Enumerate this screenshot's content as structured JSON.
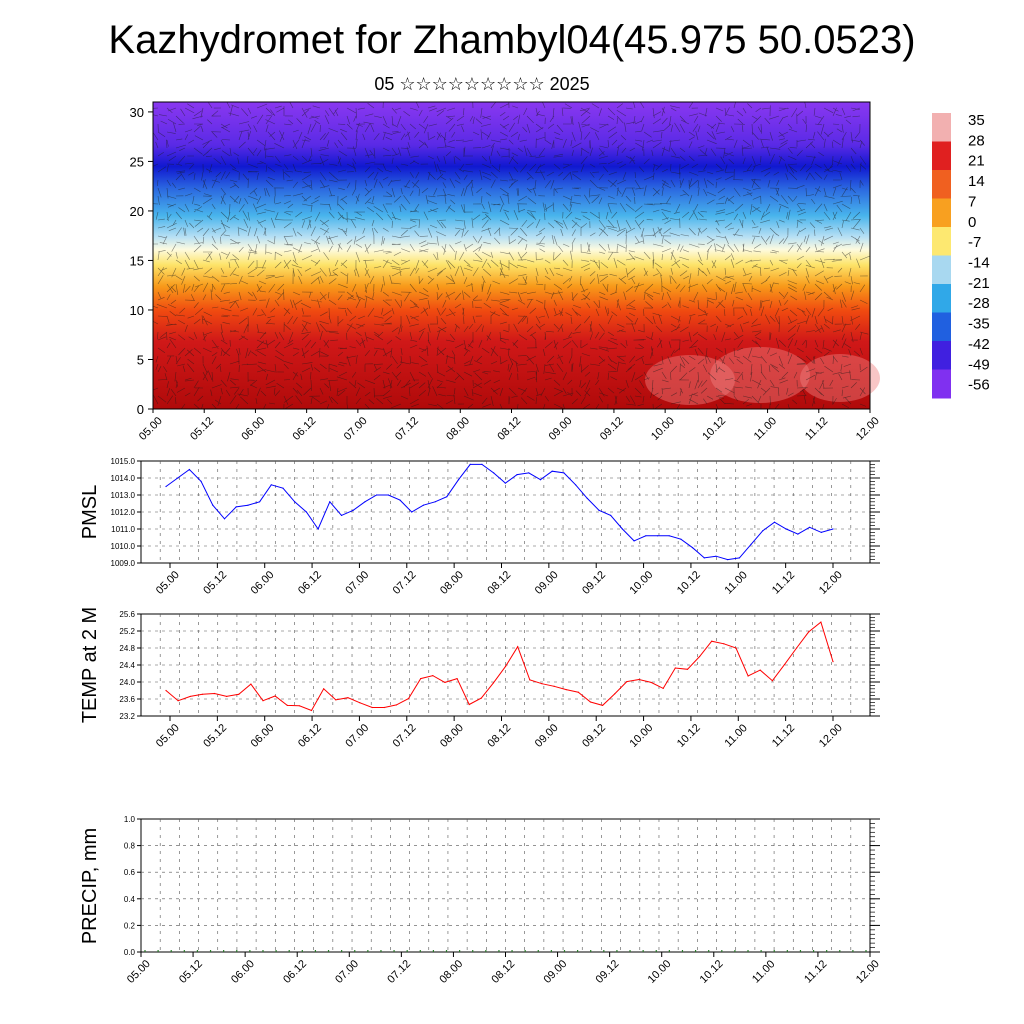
{
  "page": {
    "title": "Kazhydromet for Zhambyl04(45.975 50.0523)",
    "subtitle": "05 ☆☆☆☆☆☆☆☆☆ 2025"
  },
  "chart_data": [
    {
      "type": "heatmap",
      "name": "wind-temperature-cross-section",
      "xlabel": "",
      "ylabel": "",
      "x_ticks": [
        "05.00",
        "05.12",
        "06.00",
        "06.12",
        "07.00",
        "07.12",
        "08.00",
        "08.12",
        "09.00",
        "09.12",
        "10.00",
        "10.12",
        "11.00",
        "11.12",
        "12.00"
      ],
      "ylim": [
        0,
        31
      ],
      "y_ticks": [
        0,
        5,
        10,
        15,
        20,
        25,
        30
      ],
      "colorbar": {
        "labels": [
          "35",
          "28",
          "21",
          "14",
          "7",
          "0",
          "-7",
          "-14",
          "-21",
          "-28",
          "-35",
          "-42",
          "-49",
          "-56"
        ],
        "colors": [
          "#f2b0b0",
          "#e02020",
          "#f06020",
          "#f8a020",
          "#fde870",
          "#a8d8f0",
          "#30a8e8",
          "#2060e0",
          "#4020e0",
          "#8030f0"
        ]
      },
      "temperature_bands": [
        {
          "z_from": 0,
          "z_to": 10,
          "value": 28
        },
        {
          "z_from": 10,
          "z_to": 13,
          "value": 14
        },
        {
          "z_from": 13,
          "z_to": 16,
          "value": 0
        },
        {
          "z_from": 16,
          "z_to": 18,
          "value": -14
        },
        {
          "z_from": 18,
          "z_to": 22,
          "value": -28
        },
        {
          "z_from": 22,
          "z_to": 26,
          "value": -49
        },
        {
          "z_from": 26,
          "z_to": 31,
          "value": -56
        }
      ]
    },
    {
      "type": "line",
      "name": "pmsl",
      "ylabel": "PMSL",
      "ylim": [
        1009.0,
        1015.0
      ],
      "y_ticks": [
        "1009.0",
        "1010.0",
        "1011.0",
        "1012.0",
        "1013.0",
        "1014.0",
        "1015.0"
      ],
      "x_ticks": [
        "05.00",
        "05.12",
        "06.00",
        "06.12",
        "07.00",
        "07.12",
        "08.00",
        "08.12",
        "09.00",
        "09.12",
        "10.00",
        "10.12",
        "11.00",
        "11.12",
        "12.00"
      ],
      "color": "#0000ff",
      "values": [
        1013.5,
        1014.0,
        1014.5,
        1013.8,
        1012.4,
        1011.6,
        1012.3,
        1012.4,
        1012.6,
        1013.6,
        1013.4,
        1012.6,
        1012.0,
        1011.0,
        1012.6,
        1011.8,
        1012.1,
        1012.6,
        1013.0,
        1013.0,
        1012.7,
        1012.0,
        1012.4,
        1012.6,
        1012.9,
        1013.9,
        1014.8,
        1014.8,
        1014.3,
        1013.7,
        1014.2,
        1014.3,
        1013.9,
        1014.4,
        1014.3,
        1013.6,
        1012.8,
        1012.1,
        1011.8,
        1011.0,
        1010.3,
        1010.6,
        1010.6,
        1010.6,
        1010.4,
        1009.9,
        1009.3,
        1009.4,
        1009.2,
        1009.3,
        1010.1,
        1010.9,
        1011.4,
        1011.0,
        1010.7,
        1011.1,
        1010.8,
        1011.0
      ]
    },
    {
      "type": "line",
      "name": "temp-2m",
      "ylabel": "TEMP at 2 M",
      "ylim": [
        23.2,
        25.6
      ],
      "y_ticks": [
        "23.2",
        "23.6",
        "24.0",
        "24.4",
        "24.8",
        "25.2",
        "25.6"
      ],
      "x_ticks": [
        "05.00",
        "05.12",
        "06.00",
        "06.12",
        "07.00",
        "07.12",
        "08.00",
        "08.12",
        "09.00",
        "09.12",
        "10.00",
        "10.12",
        "11.00",
        "11.12",
        "12.00"
      ],
      "color": "#ff0000",
      "values": [
        23.8,
        23.56,
        23.66,
        23.71,
        23.73,
        23.66,
        23.71,
        23.95,
        23.56,
        23.67,
        23.45,
        23.44,
        23.33,
        23.84,
        23.58,
        23.63,
        23.51,
        23.4,
        23.4,
        23.46,
        23.61,
        24.08,
        24.15,
        23.99,
        24.08,
        23.47,
        23.62,
        23.98,
        24.37,
        24.83,
        24.05,
        23.96,
        23.9,
        23.82,
        23.76,
        23.53,
        23.45,
        23.72,
        24.01,
        24.06,
        23.99,
        23.85,
        24.33,
        24.3,
        24.6,
        24.96,
        24.9,
        24.8,
        24.14,
        24.28,
        24.03,
        24.41,
        24.8,
        25.18,
        25.41,
        24.48
      ]
    },
    {
      "type": "bar",
      "name": "precip",
      "ylabel": "PRECIP, mm",
      "ylim": [
        0.0,
        1.0
      ],
      "y_ticks": [
        "0.0",
        "0.2",
        "0.4",
        "0.6",
        "0.8",
        "1.0"
      ],
      "x_ticks": [
        "05.00",
        "05.12",
        "06.00",
        "06.12",
        "07.00",
        "07.12",
        "08.00",
        "08.12",
        "09.00",
        "09.12",
        "10.00",
        "10.12",
        "11.00",
        "11.12",
        "12.00"
      ],
      "values": [
        0,
        0,
        0,
        0,
        0,
        0,
        0,
        0,
        0,
        0,
        0,
        0,
        0,
        0,
        0,
        0,
        0,
        0,
        0,
        0,
        0,
        0,
        0,
        0,
        0,
        0,
        0,
        0,
        0,
        0,
        0,
        0,
        0,
        0,
        0,
        0,
        0,
        0,
        0,
        0,
        0,
        0,
        0,
        0,
        0,
        0,
        0,
        0,
        0,
        0,
        0,
        0,
        0,
        0,
        0,
        0
      ]
    }
  ]
}
